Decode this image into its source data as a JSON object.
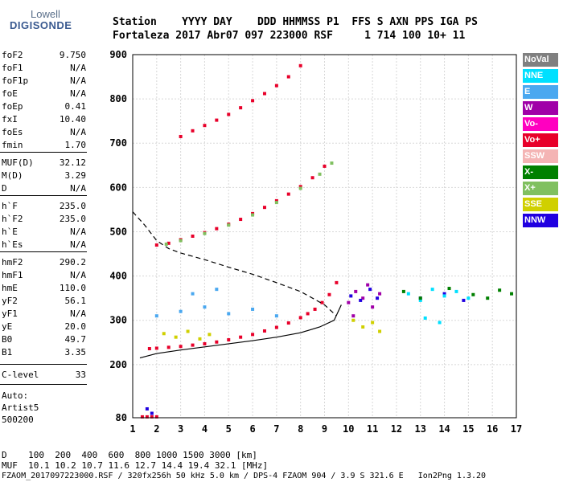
{
  "logo": {
    "line1": "Lowell",
    "line2": "DIGISONDE"
  },
  "header": {
    "row1": "Station    YYYY DAY    DDD HHMMSS P1  FFS S AXN PPS IGA PS",
    "row2": "Fortaleza 2017 Abr07 097 223000 RSF     1 714 100 10+ 11"
  },
  "params": [
    {
      "k": "foF2",
      "v": "9.750"
    },
    {
      "k": "foF1",
      "v": "N/A"
    },
    {
      "k": "foF1p",
      "v": "N/A"
    },
    {
      "k": "foE",
      "v": "N/A"
    },
    {
      "k": "foEp",
      "v": "0.41"
    },
    {
      "k": "fxI",
      "v": "10.40"
    },
    {
      "k": "foEs",
      "v": "N/A"
    },
    {
      "k": "fmin",
      "v": "1.70"
    },
    {
      "k": "MUF(D)",
      "v": "32.12"
    },
    {
      "k": "M(D)",
      "v": "3.29"
    },
    {
      "k": "D",
      "v": "N/A"
    },
    {
      "k": "h`F",
      "v": "235.0"
    },
    {
      "k": "h`F2",
      "v": "235.0"
    },
    {
      "k": "h`E",
      "v": "N/A"
    },
    {
      "k": "h`Es",
      "v": "N/A"
    },
    {
      "k": "hmF2",
      "v": "290.2"
    },
    {
      "k": "hmF1",
      "v": "N/A"
    },
    {
      "k": "hmE",
      "v": "110.0"
    },
    {
      "k": "yF2",
      "v": "56.1"
    },
    {
      "k": "yF1",
      "v": "N/A"
    },
    {
      "k": "yE",
      "v": "20.0"
    },
    {
      "k": "B0",
      "v": "49.7"
    },
    {
      "k": "B1",
      "v": "3.35"
    },
    {
      "k": "C-level",
      "v": "33"
    }
  ],
  "auto": {
    "l1": "Auto:",
    "l2": "Artist5",
    "l3": "500200"
  },
  "footer": {
    "d_row": "D    100  200  400  600  800 1000 1500 3000 [km]",
    "muf_row": "MUF  10.1 10.2 10.7 11.6 12.7 14.4 19.4 32.1 [MHz]",
    "file_row": "FZAOM_2017097223000.RSF / 320fx256h 50 kHz 5.0 km / DPS-4 FZAOM 904 / 3.9 S 321.6 E   Ion2Png 1.3.20"
  },
  "legend": [
    {
      "label": "NoVal",
      "color": "#808080"
    },
    {
      "label": "NNE",
      "color": "#00e0ff"
    },
    {
      "label": "E",
      "color": "#4aa8f0"
    },
    {
      "label": "W",
      "color": "#a000a8"
    },
    {
      "label": "Vo-",
      "color": "#ff00c0"
    },
    {
      "label": "Vo+",
      "color": "#e8002a"
    },
    {
      "label": "SSW",
      "color": "#f4b4b4"
    },
    {
      "label": "X-",
      "color": "#008000"
    },
    {
      "label": "X+",
      "color": "#80c060"
    },
    {
      "label": "SSE",
      "color": "#d0d000"
    },
    {
      "label": "NNW",
      "color": "#2000e0"
    }
  ],
  "chart_data": {
    "type": "scatter",
    "xlim": [
      1,
      17
    ],
    "ylim": [
      80,
      900
    ],
    "x_ticks": [
      1,
      2,
      3,
      4,
      5,
      6,
      7,
      8,
      9,
      10,
      11,
      12,
      13,
      14,
      15,
      16,
      17
    ],
    "y_ticks": [
      80,
      200,
      300,
      400,
      500,
      600,
      700,
      800,
      900
    ],
    "grid": true,
    "series": [
      {
        "name": "Vo+",
        "color": "#e8002a",
        "x": [
          1.7,
          2.0,
          2.5,
          3.0,
          3.5,
          4.0,
          4.5,
          5.0,
          5.5,
          6.0,
          6.5,
          7.0,
          7.5,
          8.0,
          8.3,
          8.6,
          8.9,
          9.2,
          9.5
        ],
        "y": [
          236,
          237,
          239,
          241,
          244,
          247,
          251,
          256,
          262,
          268,
          276,
          284,
          294,
          306,
          315,
          325,
          340,
          358,
          385
        ]
      },
      {
        "name": "Vo+",
        "color": "#e8002a",
        "x": [
          2.0,
          2.5,
          3.0,
          3.5,
          4.0,
          4.5,
          5.0,
          5.5,
          6.0,
          6.5,
          7.0,
          7.5,
          8.0,
          8.5,
          9.0
        ],
        "y": [
          470,
          474,
          482,
          490,
          498,
          507,
          517,
          528,
          541,
          555,
          570,
          585,
          602,
          622,
          648
        ]
      },
      {
        "name": "Vo+",
        "color": "#e8002a",
        "x": [
          3.0,
          3.5,
          4.0,
          4.5,
          5.0,
          5.5,
          6.0,
          6.5,
          7.0,
          7.5,
          8.0
        ],
        "y": [
          715,
          728,
          740,
          752,
          765,
          780,
          796,
          812,
          830,
          850,
          875
        ]
      },
      {
        "name": "X+",
        "color": "#80c060",
        "x": [
          2.4,
          3.0,
          4.0,
          5.0,
          6.0,
          7.0,
          8.0,
          8.8,
          9.3
        ],
        "y": [
          472,
          480,
          496,
          515,
          538,
          566,
          598,
          630,
          655
        ]
      },
      {
        "name": "W",
        "color": "#a000a8",
        "x": [
          10.0,
          10.3,
          10.6,
          11.0,
          11.3,
          10.2,
          10.8
        ],
        "y": [
          340,
          365,
          350,
          330,
          360,
          310,
          380
        ]
      },
      {
        "name": "NNW",
        "color": "#2000e0",
        "x": [
          10.1,
          10.5,
          10.9,
          11.2,
          13.0,
          14.0,
          14.8
        ],
        "y": [
          355,
          345,
          370,
          350,
          350,
          360,
          345
        ]
      },
      {
        "name": "NNE",
        "color": "#00e0ff",
        "x": [
          12.5,
          13.0,
          13.5,
          14.0,
          14.5,
          15.0,
          13.2,
          13.8
        ],
        "y": [
          360,
          345,
          370,
          355,
          365,
          350,
          305,
          295
        ]
      },
      {
        "name": "X-",
        "color": "#008000",
        "x": [
          12.3,
          13.0,
          14.2,
          15.2,
          15.8,
          16.3,
          16.8
        ],
        "y": [
          365,
          350,
          372,
          358,
          350,
          368,
          360
        ]
      },
      {
        "name": "SSE",
        "color": "#d0d000",
        "x": [
          2.3,
          2.8,
          3.3,
          3.8,
          4.2,
          10.2,
          10.6,
          11.0,
          11.3
        ],
        "y": [
          270,
          262,
          275,
          258,
          268,
          300,
          285,
          295,
          275
        ]
      },
      {
        "name": "E",
        "color": "#4aa8f0",
        "x": [
          2.0,
          3.0,
          4.0,
          5.0,
          6.0,
          7.0,
          3.5,
          4.5
        ],
        "y": [
          310,
          320,
          330,
          315,
          325,
          310,
          360,
          370
        ]
      },
      {
        "name": "Vo+",
        "color": "#e8002a",
        "x": [
          1.4,
          1.6,
          1.8,
          2.0
        ],
        "y": [
          82,
          82,
          82,
          82
        ]
      },
      {
        "name": "NNW",
        "color": "#2000e0",
        "x": [
          1.6,
          1.8
        ],
        "y": [
          100,
          90
        ]
      }
    ],
    "profile_line": {
      "x": [
        1.3,
        2.0,
        3.0,
        4.0,
        5.0,
        6.0,
        7.0,
        8.0,
        8.8,
        9.4,
        9.7
      ],
      "y": [
        215,
        225,
        233,
        240,
        247,
        254,
        262,
        272,
        285,
        300,
        335
      ]
    },
    "dashed_line": {
      "x": [
        1.0,
        1.5,
        2.0,
        2.5,
        3.0,
        4.0,
        5.0,
        6.0,
        7.0,
        8.0,
        9.0,
        9.5
      ],
      "y": [
        545,
        515,
        480,
        462,
        452,
        437,
        420,
        404,
        385,
        365,
        335,
        310
      ]
    }
  }
}
